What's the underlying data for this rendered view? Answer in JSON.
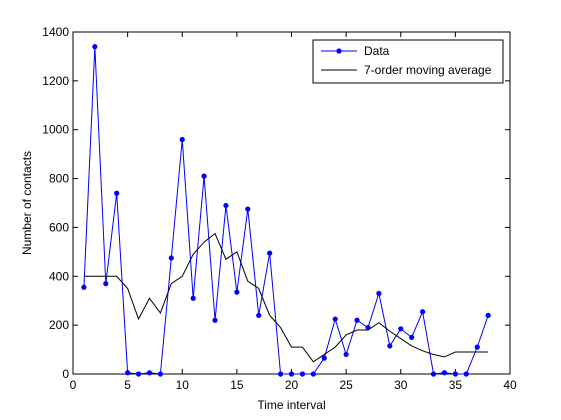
{
  "chart_data": {
    "type": "line",
    "title": "",
    "xlabel": "Time interval",
    "ylabel": "Number of contacts",
    "xlim": [
      0,
      40
    ],
    "ylim": [
      0,
      1400
    ],
    "xticks": [
      0,
      5,
      10,
      15,
      20,
      25,
      30,
      35,
      40
    ],
    "yticks": [
      0,
      200,
      400,
      600,
      800,
      1000,
      1200,
      1400
    ],
    "grid": false,
    "legend_position": "top-right",
    "series": [
      {
        "name": "Data",
        "color": "#0000ff",
        "marker": "dot",
        "x": [
          1,
          2,
          3,
          4,
          5,
          6,
          7,
          8,
          9,
          10,
          11,
          12,
          13,
          14,
          15,
          16,
          17,
          18,
          19,
          20,
          21,
          22,
          23,
          24,
          25,
          26,
          27,
          28,
          29,
          30,
          31,
          32,
          33,
          34,
          35,
          36,
          37,
          38
        ],
        "y": [
          355,
          1340,
          370,
          740,
          5,
          0,
          5,
          0,
          475,
          960,
          310,
          810,
          220,
          690,
          335,
          675,
          240,
          495,
          0,
          0,
          0,
          0,
          65,
          225,
          80,
          220,
          190,
          330,
          115,
          185,
          150,
          255,
          0,
          5,
          0,
          0,
          110,
          240
        ]
      },
      {
        "name": "7-order moving average",
        "color": "#000000",
        "marker": "none",
        "x": [
          1,
          2,
          3,
          4,
          5,
          6,
          7,
          8,
          9,
          10,
          11,
          12,
          13,
          14,
          15,
          16,
          17,
          18,
          19,
          20,
          21,
          22,
          23,
          24,
          25,
          26,
          27,
          28,
          29,
          30,
          31,
          32,
          33,
          34,
          35,
          36,
          37,
          38
        ],
        "y": [
          400,
          400,
          400,
          400,
          350,
          225,
          310,
          250,
          370,
          400,
          490,
          540,
          575,
          470,
          500,
          380,
          350,
          240,
          190,
          110,
          110,
          50,
          80,
          110,
          160,
          180,
          180,
          210,
          175,
          145,
          115,
          95,
          80,
          70,
          90,
          90,
          90,
          90
        ]
      }
    ]
  }
}
